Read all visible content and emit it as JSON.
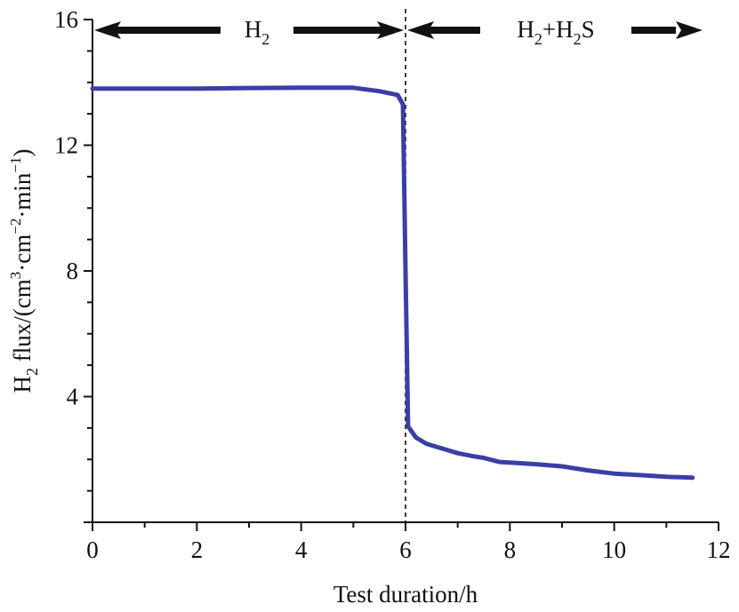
{
  "chart_data": {
    "type": "line",
    "title": "",
    "xlabel": "Test duration/h",
    "ylabel": {
      "prefix": "H",
      "prefix_sub": "2",
      "main": " flux/(cm",
      "sup1": "3",
      "mid1": "·cm",
      "sup2": "−2",
      "mid2": "·min",
      "sup3": "−1",
      "end": ")"
    },
    "xlim": [
      0,
      12
    ],
    "ylim": [
      0,
      16
    ],
    "x_ticks": [
      0,
      2,
      4,
      6,
      8,
      10,
      12
    ],
    "y_ticks": [
      0,
      4,
      8,
      12,
      16
    ],
    "x_tick_labels": [
      "0",
      "2",
      "4",
      "6",
      "8",
      "10",
      "12"
    ],
    "y_tick_labels": [
      "",
      "4",
      "8",
      "12",
      "16"
    ],
    "grid": false,
    "series_color": "#3a3fa6",
    "series": [
      {
        "values": [
          [
            0,
            13.8
          ],
          [
            1,
            13.8
          ],
          [
            2,
            13.8
          ],
          [
            3,
            13.82
          ],
          [
            4,
            13.83
          ],
          [
            5,
            13.83
          ],
          [
            5.5,
            13.72
          ],
          [
            5.85,
            13.6
          ],
          [
            5.95,
            13.3
          ],
          [
            6.0,
            8.0
          ],
          [
            6.05,
            3.05
          ],
          [
            6.2,
            2.7
          ],
          [
            6.4,
            2.5
          ],
          [
            6.8,
            2.3
          ],
          [
            7.0,
            2.2
          ],
          [
            7.3,
            2.1
          ],
          [
            7.5,
            2.05
          ],
          [
            7.8,
            1.92
          ],
          [
            8.0,
            1.9
          ],
          [
            8.5,
            1.85
          ],
          [
            9.0,
            1.78
          ],
          [
            9.5,
            1.65
          ],
          [
            10.0,
            1.55
          ],
          [
            10.5,
            1.5
          ],
          [
            11.0,
            1.45
          ],
          [
            11.5,
            1.42
          ]
        ]
      }
    ],
    "divider_x": 6,
    "regions": [
      {
        "label_main": "H",
        "label_sub": "2",
        "label_rest": "",
        "label_sub2": "",
        "label_end": ""
      },
      {
        "label_main": "H",
        "label_sub": "2",
        "label_rest": "+H",
        "label_sub2": "2",
        "label_end": "S"
      }
    ]
  }
}
